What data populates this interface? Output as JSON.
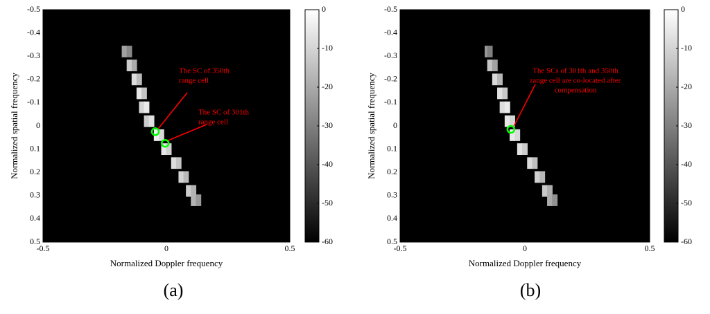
{
  "chart_data": [
    {
      "type": "heatmap",
      "xlabel": "Normalized Doppler frequency",
      "ylabel": "Normalized spatial frequency",
      "caption": "(a)",
      "xlim": [
        -0.5,
        0.5
      ],
      "ylim": [
        -0.5,
        0.5
      ],
      "xticks": [
        -0.5,
        0,
        0.5
      ],
      "yticks": [
        -0.5,
        -0.4,
        -0.3,
        -0.2,
        -0.1,
        0,
        0.1,
        0.2,
        0.3,
        0.4,
        0.5
      ],
      "clim": [
        -60,
        0
      ],
      "cticks": [
        0,
        -10,
        -20,
        -30,
        -40,
        -50,
        -60
      ],
      "cells": {
        "x": [
          -0.17,
          -0.15,
          -0.15,
          -0.13,
          -0.13,
          -0.11,
          -0.11,
          -0.09,
          -0.1,
          -0.08,
          -0.08,
          -0.06,
          -0.04,
          -0.02,
          -0.01,
          0.01,
          0.03,
          0.05,
          0.06,
          0.08,
          0.09,
          0.11,
          0.11,
          0.13
        ],
        "y": [
          -0.32,
          -0.32,
          -0.26,
          -0.26,
          -0.2,
          -0.2,
          -0.14,
          -0.14,
          -0.08,
          -0.08,
          -0.02,
          -0.02,
          0.04,
          0.04,
          0.1,
          0.1,
          0.16,
          0.16,
          0.22,
          0.22,
          0.28,
          0.28,
          0.32,
          0.32
        ],
        "values": [
          -22,
          -28,
          -12,
          -20,
          -8,
          -16,
          -6,
          -14,
          -10,
          -5,
          -12,
          -7,
          -4,
          -9,
          -6,
          -11,
          -8,
          -14,
          -10,
          -16,
          -12,
          -18,
          -18,
          -24
        ]
      },
      "markers": {
        "x": [
          -0.045,
          -0.005
        ],
        "y": [
          0.025,
          0.075
        ],
        "color": "#00ff00"
      },
      "annotations": [
        {
          "text": [
            "The SC of 350th",
            "range cell"
          ],
          "marker": 0
        },
        {
          "text": [
            "The SC of 301th",
            "range cell"
          ],
          "marker": 1
        }
      ]
    },
    {
      "type": "heatmap",
      "xlabel": "Normalized Doppler frequency",
      "ylabel": "Normalized spatial frequency",
      "caption": "(b)",
      "xlim": [
        -0.5,
        0.5
      ],
      "ylim": [
        -0.5,
        0.5
      ],
      "xticks": [
        -0.5,
        0,
        0.5
      ],
      "yticks": [
        -0.5,
        -0.4,
        -0.3,
        -0.2,
        -0.1,
        0,
        0.1,
        0.2,
        0.3,
        0.4,
        0.5
      ],
      "clim": [
        -60,
        0
      ],
      "cticks": [
        0,
        -10,
        -20,
        -30,
        -40,
        -50,
        -60
      ],
      "cells": {
        "x": [
          -0.15,
          -0.14,
          -0.14,
          -0.12,
          -0.12,
          -0.1,
          -0.1,
          -0.08,
          -0.09,
          -0.07,
          -0.07,
          -0.05,
          -0.05,
          -0.03,
          -0.02,
          0.0,
          0.02,
          0.04,
          0.05,
          0.07,
          0.08,
          0.1,
          0.1,
          0.12
        ],
        "y": [
          -0.32,
          -0.32,
          -0.26,
          -0.26,
          -0.2,
          -0.2,
          -0.14,
          -0.14,
          -0.08,
          -0.08,
          -0.02,
          -0.02,
          0.04,
          0.04,
          0.1,
          0.1,
          0.16,
          0.16,
          0.22,
          0.22,
          0.28,
          0.28,
          0.32,
          0.32
        ],
        "values": [
          -24,
          -30,
          -14,
          -22,
          -9,
          -17,
          -7,
          -13,
          -8,
          -5,
          -6,
          -10,
          -5,
          -9,
          -7,
          -12,
          -9,
          -15,
          -11,
          -17,
          -13,
          -19,
          -20,
          -26
        ]
      },
      "markers": {
        "x": [
          -0.056
        ],
        "y": [
          0.015
        ],
        "color": "#00ff00"
      },
      "annotations": [
        {
          "text": [
            "The SCs of 301th and 350th",
            "range cell are  co-located  after",
            "compensation"
          ],
          "marker": 0
        }
      ]
    }
  ]
}
